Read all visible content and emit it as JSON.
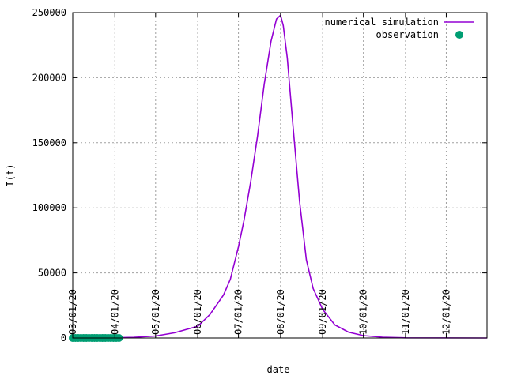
{
  "chart_data": {
    "type": "line",
    "title": "",
    "xlabel": "date",
    "ylabel": "I(t)",
    "xlim": [
      "2020-03-01",
      "2020-12-31"
    ],
    "ylim": [
      0,
      250000
    ],
    "grid": true,
    "legend_position": "top-right",
    "x_tick_labels": [
      {
        "date": "2020-03-01",
        "label": "03/01/20"
      },
      {
        "date": "2020-04-01",
        "label": "04/01/20"
      },
      {
        "date": "2020-05-01",
        "label": "05/01/20"
      },
      {
        "date": "2020-06-01",
        "label": "06/01/20"
      },
      {
        "date": "2020-07-01",
        "label": "07/01/20"
      },
      {
        "date": "2020-08-01",
        "label": "08/01/20"
      },
      {
        "date": "2020-09-01",
        "label": "09/01/20"
      },
      {
        "date": "2020-10-01",
        "label": "10/01/20"
      },
      {
        "date": "2020-11-01",
        "label": "11/01/20"
      },
      {
        "date": "2020-12-01",
        "label": "12/01/20"
      }
    ],
    "y_tick_labels": [
      {
        "value": 0,
        "label": "0"
      },
      {
        "value": 50000,
        "label": "50000"
      },
      {
        "value": 100000,
        "label": "100000"
      },
      {
        "value": 150000,
        "label": "150000"
      },
      {
        "value": 200000,
        "label": "200000"
      },
      {
        "value": 250000,
        "label": "250000"
      }
    ],
    "series": [
      {
        "name": "numerical simulation",
        "kind": "line",
        "color": "#9400d3",
        "points": [
          [
            "2020-03-01",
            0
          ],
          [
            "2020-04-01",
            200
          ],
          [
            "2020-04-15",
            500
          ],
          [
            "2020-05-01",
            1500
          ],
          [
            "2020-05-15",
            4000
          ],
          [
            "2020-06-01",
            9000
          ],
          [
            "2020-06-10",
            18000
          ],
          [
            "2020-06-20",
            33000
          ],
          [
            "2020-06-25",
            45000
          ],
          [
            "2020-07-01",
            70000
          ],
          [
            "2020-07-05",
            90000
          ],
          [
            "2020-07-10",
            120000
          ],
          [
            "2020-07-15",
            155000
          ],
          [
            "2020-07-20",
            195000
          ],
          [
            "2020-07-25",
            228000
          ],
          [
            "2020-07-29",
            245000
          ],
          [
            "2020-08-01",
            248000
          ],
          [
            "2020-08-03",
            240000
          ],
          [
            "2020-08-06",
            215000
          ],
          [
            "2020-08-10",
            165000
          ],
          [
            "2020-08-15",
            105000
          ],
          [
            "2020-08-20",
            60000
          ],
          [
            "2020-08-25",
            38000
          ],
          [
            "2020-09-01",
            22000
          ],
          [
            "2020-09-10",
            10000
          ],
          [
            "2020-09-20",
            4500
          ],
          [
            "2020-10-01",
            1800
          ],
          [
            "2020-10-15",
            600
          ],
          [
            "2020-11-01",
            150
          ],
          [
            "2020-12-31",
            0
          ]
        ]
      },
      {
        "name": "observation",
        "kind": "points",
        "color": "#009e73",
        "points": [
          [
            "2020-03-01",
            0
          ],
          [
            "2020-03-03",
            0
          ],
          [
            "2020-03-05",
            0
          ],
          [
            "2020-03-07",
            0
          ],
          [
            "2020-03-09",
            0
          ],
          [
            "2020-03-11",
            0
          ],
          [
            "2020-03-13",
            0
          ],
          [
            "2020-03-15",
            0
          ],
          [
            "2020-03-17",
            0
          ],
          [
            "2020-03-19",
            0
          ],
          [
            "2020-03-21",
            0
          ],
          [
            "2020-03-23",
            0
          ],
          [
            "2020-03-25",
            0
          ],
          [
            "2020-03-27",
            0
          ],
          [
            "2020-03-29",
            0
          ],
          [
            "2020-03-31",
            0
          ],
          [
            "2020-04-02",
            0
          ],
          [
            "2020-04-04",
            0
          ]
        ]
      }
    ]
  }
}
